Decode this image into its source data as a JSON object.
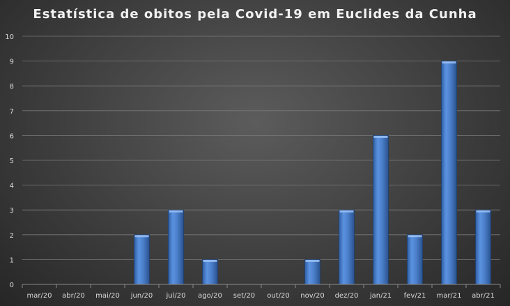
{
  "chart_data": {
    "type": "bar",
    "title": "Estatística de obitos pela Covid-19 em Euclides da Cunha",
    "xlabel": "",
    "ylabel": "",
    "categories": [
      "mar/20",
      "abr/20",
      "mai/20",
      "jun/20",
      "jul/20",
      "ago/20",
      "set/20",
      "out/20",
      "nov/20",
      "dez/20",
      "jan/21",
      "fev/21",
      "mar/21",
      "abr/21"
    ],
    "values": [
      0,
      0,
      0,
      2,
      3,
      1,
      0,
      0,
      1,
      3,
      6,
      2,
      9,
      3
    ],
    "ylim": [
      0,
      10
    ],
    "yticks": [
      "0",
      "1",
      "2",
      "3",
      "4",
      "5",
      "6",
      "7",
      "8",
      "9",
      "10"
    ],
    "grid": true,
    "legend": "none",
    "bar_color": "#4a7ec9"
  }
}
